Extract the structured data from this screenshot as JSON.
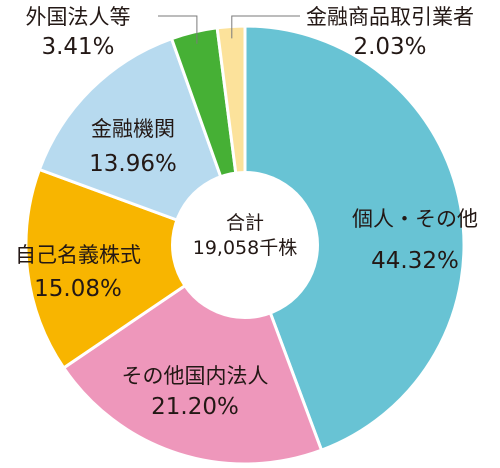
{
  "chart_data": {
    "type": "pie",
    "style": "donut",
    "total_label": "合計",
    "total_value": "19,058千株",
    "slices": [
      {
        "label": "個人・その他",
        "value": 44.32,
        "display": "44.32%",
        "color": "#68C3D4"
      },
      {
        "label": "その他国内法人",
        "value": 21.2,
        "display": "21.20%",
        "color": "#EE97BB"
      },
      {
        "label": "自己名義株式",
        "value": 15.08,
        "display": "15.08%",
        "color": "#F8B500"
      },
      {
        "label": "金融機関",
        "value": 13.96,
        "display": "13.96%",
        "color": "#B7DAEF"
      },
      {
        "label": "外国法人等",
        "value": 3.41,
        "display": "3.41%",
        "color": "#46B035"
      },
      {
        "label": "金融商品取引業者",
        "value": 2.03,
        "display": "2.03%",
        "color": "#FCE29B"
      }
    ]
  }
}
